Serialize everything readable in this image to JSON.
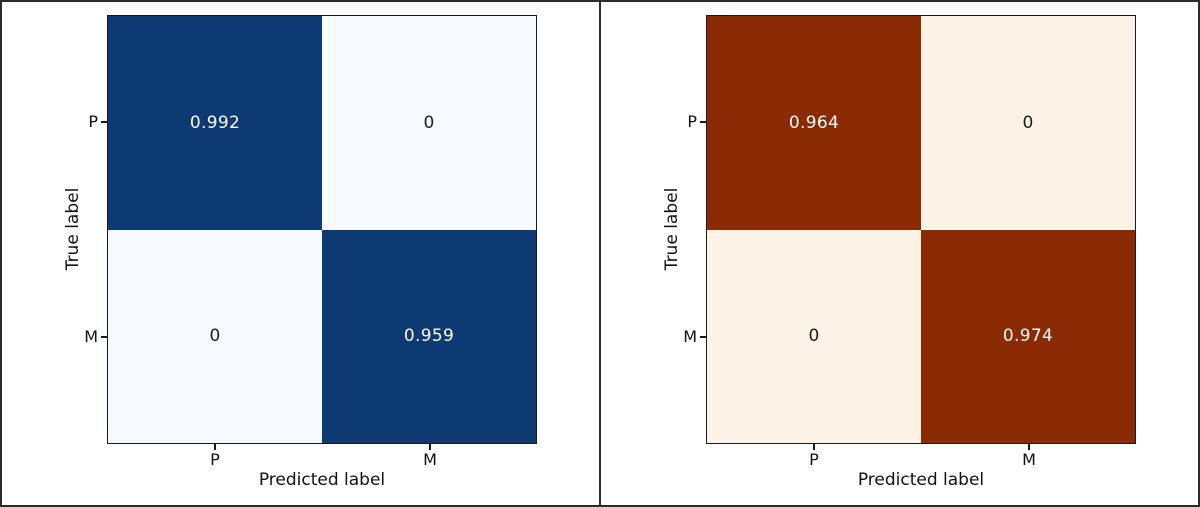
{
  "panels": [
    {
      "name": "blues-confusion-matrix",
      "colormap": "Blues",
      "xlabel": "Predicted label",
      "ylabel": "True label",
      "classes": [
        "P",
        "M"
      ],
      "colors": {
        "dark": "#0e3a73",
        "light": "#f6fafe",
        "text_on_dark": "#ffffff",
        "text_on_light": "#1c1c1c"
      },
      "cells": [
        {
          "row": "P",
          "col": "P",
          "value": "0.992",
          "bg": "#0e3a73",
          "fg": "#ffffff"
        },
        {
          "row": "P",
          "col": "M",
          "value": "0",
          "bg": "#f6fafe",
          "fg": "#1c1c1c"
        },
        {
          "row": "M",
          "col": "P",
          "value": "0",
          "bg": "#f6fafe",
          "fg": "#1c1c1c"
        },
        {
          "row": "M",
          "col": "M",
          "value": "0.959",
          "bg": "#0e3a73",
          "fg": "#ffffff"
        }
      ]
    },
    {
      "name": "oranges-confusion-matrix",
      "colormap": "Oranges",
      "xlabel": "Predicted label",
      "ylabel": "True label",
      "classes": [
        "P",
        "M"
      ],
      "colors": {
        "dark": "#8a2b06",
        "light": "#fdf2e6",
        "text_on_dark": "#ffffff",
        "text_on_light": "#1c1c1c"
      },
      "cells": [
        {
          "row": "P",
          "col": "P",
          "value": "0.964",
          "bg": "#8a2b06",
          "fg": "#ffffff"
        },
        {
          "row": "P",
          "col": "M",
          "value": "0",
          "bg": "#fdf2e6",
          "fg": "#1c1c1c"
        },
        {
          "row": "M",
          "col": "P",
          "value": "0",
          "bg": "#fdf2e6",
          "fg": "#1c1c1c"
        },
        {
          "row": "M",
          "col": "M",
          "value": "0.974",
          "bg": "#8a2b06",
          "fg": "#ffffff"
        }
      ]
    }
  ],
  "chart_data": [
    {
      "type": "heatmap",
      "subtype": "confusion-matrix",
      "title": "",
      "xlabel": "Predicted label",
      "ylabel": "True label",
      "x_categories": [
        "P",
        "M"
      ],
      "y_categories": [
        "P",
        "M"
      ],
      "values": [
        [
          0.992,
          0
        ],
        [
          0,
          0.959
        ]
      ],
      "colormap": "Blues",
      "grid": false,
      "legend": false
    },
    {
      "type": "heatmap",
      "subtype": "confusion-matrix",
      "title": "",
      "xlabel": "Predicted label",
      "ylabel": "True label",
      "x_categories": [
        "P",
        "M"
      ],
      "y_categories": [
        "P",
        "M"
      ],
      "values": [
        [
          0.964,
          0
        ],
        [
          0,
          0.974
        ]
      ],
      "colormap": "Oranges",
      "grid": false,
      "legend": false
    }
  ]
}
